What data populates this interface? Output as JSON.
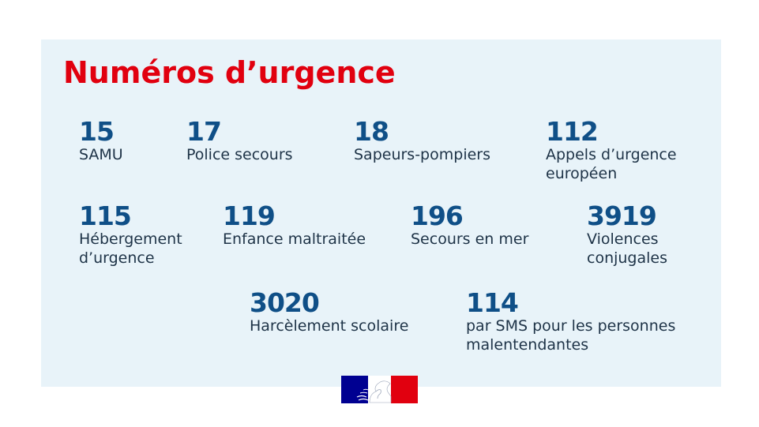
{
  "title": "Numéros d’urgence",
  "entries": [
    {
      "number": "15",
      "label": "SAMU"
    },
    {
      "number": "17",
      "label": "Police secours"
    },
    {
      "number": "18",
      "label": "Sapeurs-pompiers"
    },
    {
      "number": "112",
      "label": "Appels d’urgence européen"
    },
    {
      "number": "115",
      "label": "Hébergement d’urgence"
    },
    {
      "number": "119",
      "label": "Enfance maltraitée"
    },
    {
      "number": "196",
      "label": "Secours en mer"
    },
    {
      "number": "3919",
      "label": "Violences conjugales"
    },
    {
      "number": "3020",
      "label": "Harcèlement scolaire"
    },
    {
      "number": "114",
      "label": "par SMS pour les personnes malentendantes"
    }
  ],
  "colors": {
    "title": "#e1000f",
    "number": "#0f4f87",
    "panel_background": "#e8f3f9",
    "flag_blue": "#000091",
    "flag_red": "#e1000f"
  },
  "logo": {
    "icon": "marianne-flag-logo"
  }
}
